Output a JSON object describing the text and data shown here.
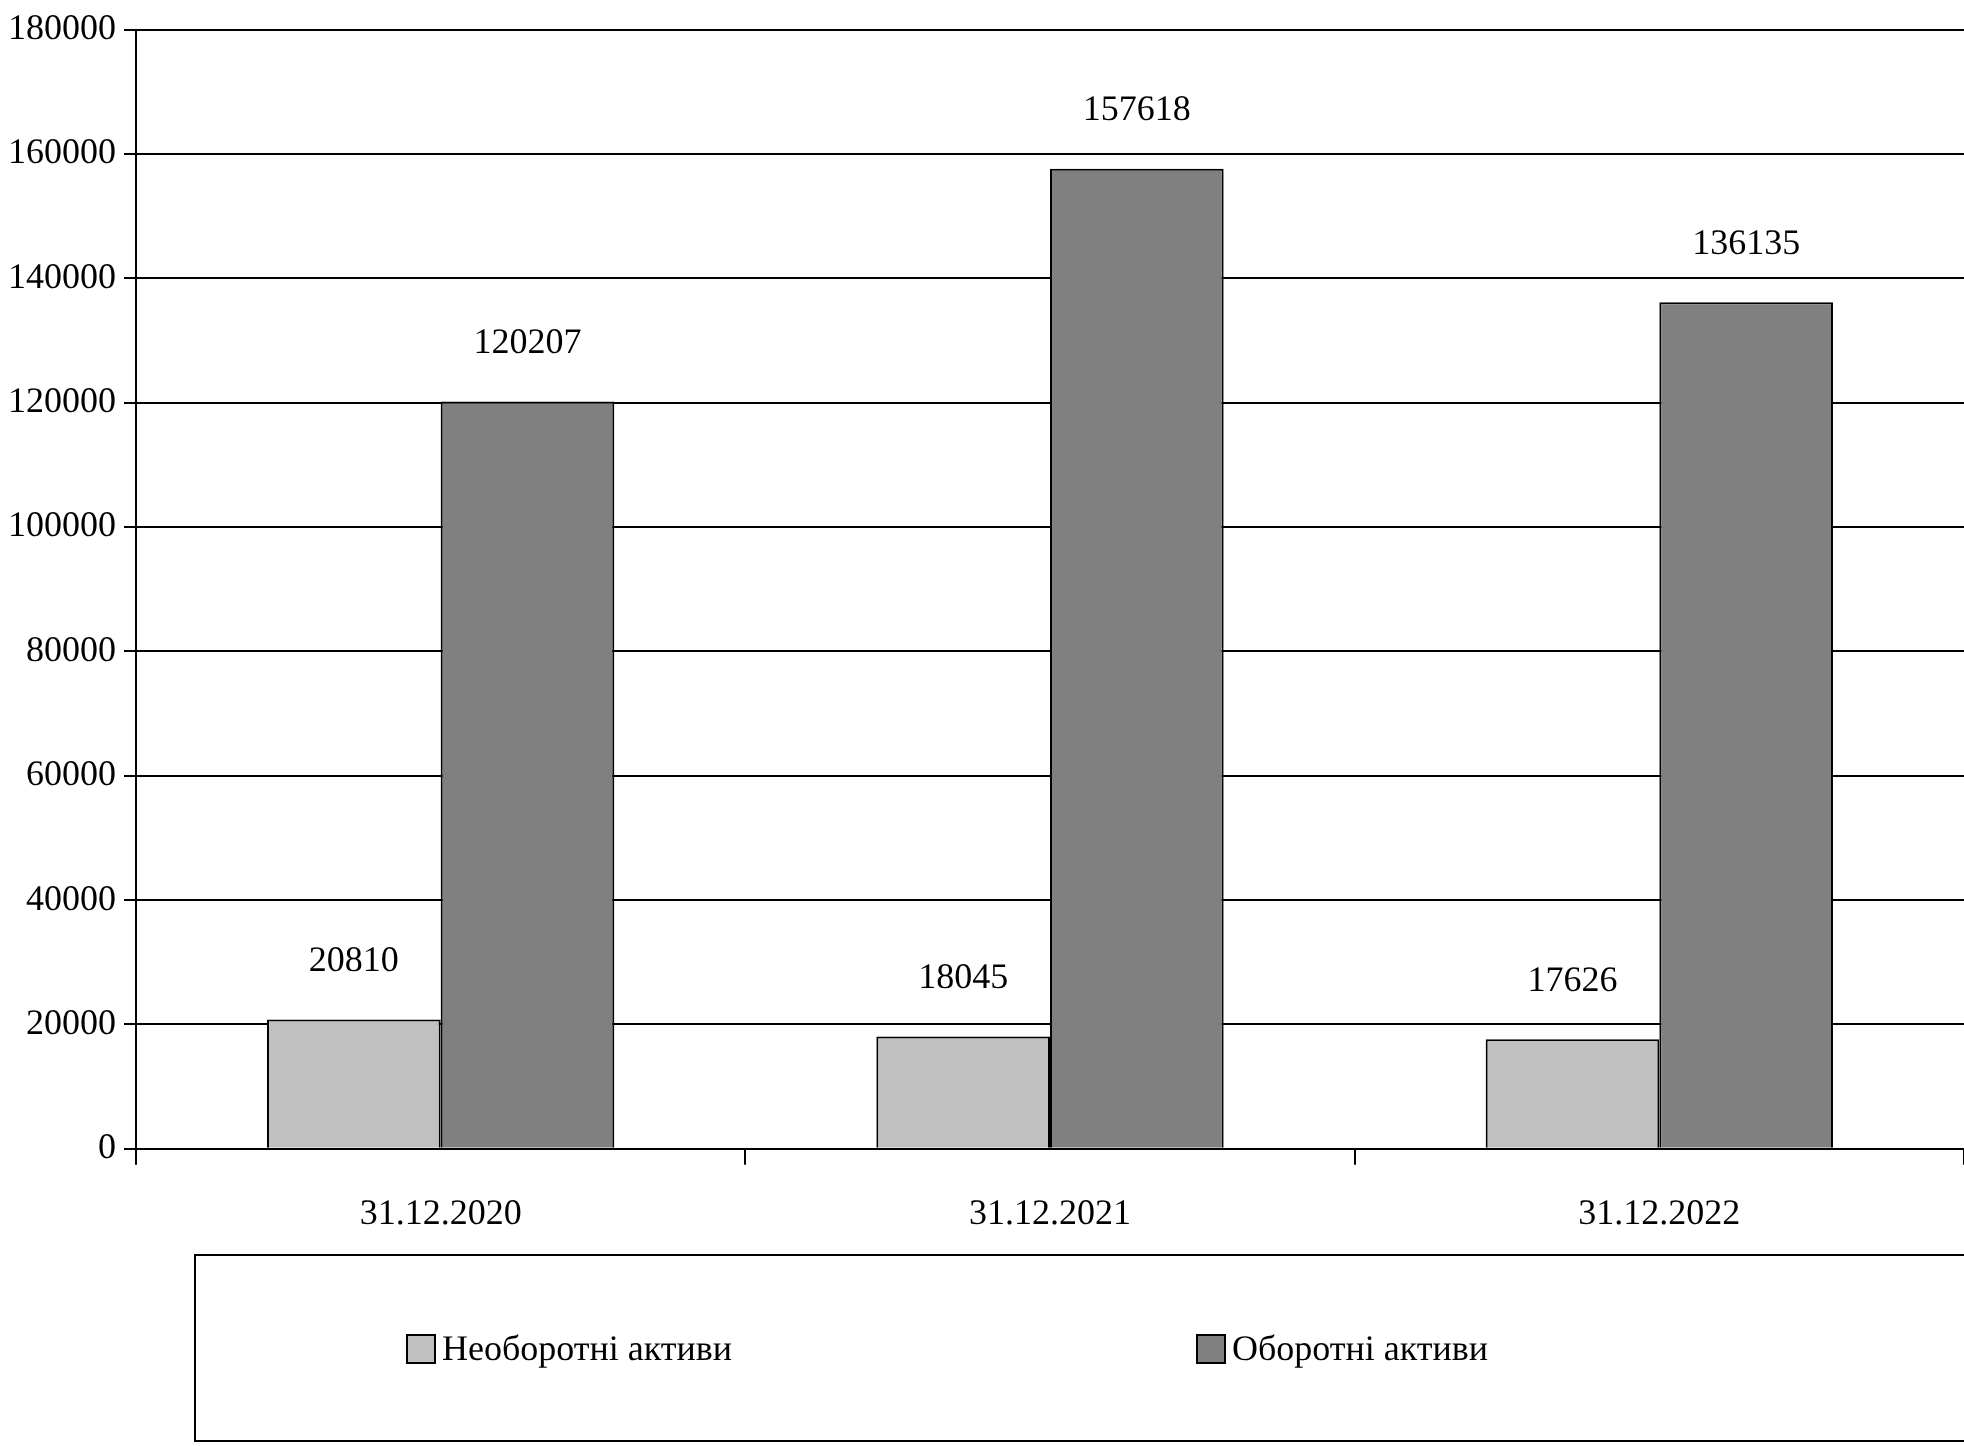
{
  "chart_data": {
    "type": "bar",
    "categories": [
      "31.12.2020",
      "31.12.2021",
      "31.12.2022"
    ],
    "series": [
      {
        "name": "Необоротні активи",
        "color": "#c0c0c0",
        "values": [
          20810,
          18045,
          17626
        ]
      },
      {
        "name": "Оборотні активи",
        "color": "#808080",
        "values": [
          120207,
          157618,
          136135
        ]
      }
    ],
    "ylim": [
      0,
      180000
    ],
    "yticks": [
      0,
      20000,
      40000,
      60000,
      80000,
      100000,
      120000,
      140000,
      160000,
      180000
    ],
    "grid": "y",
    "legend": "bottom",
    "data_labels": true
  }
}
